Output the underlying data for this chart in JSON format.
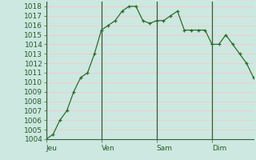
{
  "background_color": "#cce8e0",
  "plot_bg_color": "#cce8e0",
  "line_color": "#2d6b2d",
  "marker_color": "#2d6b2d",
  "grid_color_major_h": "#f5c8c8",
  "grid_color_major_v": "#ffffff",
  "vline_color": "#3a5a3a",
  "axis_color": "#3a5a3a",
  "ylim": [
    1004,
    1018.5
  ],
  "ytick_min": 1004,
  "ytick_max": 1018,
  "day_labels": [
    "Jeu",
    "Ven",
    "Sam",
    "Dim"
  ],
  "day_positions": [
    0,
    8,
    16,
    24
  ],
  "x_values": [
    0,
    1,
    2,
    3,
    4,
    5,
    6,
    7,
    8,
    9,
    10,
    11,
    12,
    13,
    14,
    15,
    16,
    17,
    18,
    19,
    20,
    21,
    22,
    23,
    24,
    25,
    26,
    27,
    28,
    29,
    30
  ],
  "y_values": [
    1004.0,
    1004.5,
    1006.0,
    1007.0,
    1009.0,
    1010.5,
    1011.0,
    1013.0,
    1015.5,
    1016.0,
    1016.5,
    1017.5,
    1018.0,
    1018.0,
    1016.5,
    1016.2,
    1016.5,
    1016.5,
    1017.0,
    1017.5,
    1015.5,
    1015.5,
    1015.5,
    1015.5,
    1014.0,
    1014.0,
    1015.0,
    1014.0,
    1013.0,
    1012.0,
    1010.5
  ],
  "tick_label_fontsize": 6.5,
  "tick_label_color": "#2a5a2a"
}
